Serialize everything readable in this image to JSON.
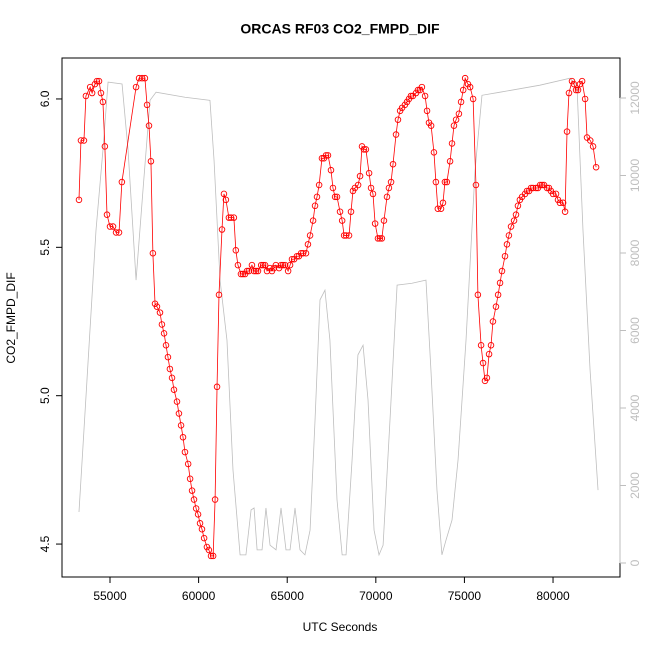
{
  "chart_data": {
    "type": "line",
    "title": "ORCAS RF03 CO2_FMPD_DIF",
    "x_label": "UTC Seconds",
    "y_label": "CO2_FMPD_DIF",
    "xlim": [
      52291,
      83779
    ],
    "ylim": [
      4.389,
      6.138
    ],
    "y2lim": [
      -361,
      13032
    ],
    "xticks": [
      55000,
      60000,
      65000,
      70000,
      75000,
      80000
    ],
    "yticks": [
      {
        "value": 4.5,
        "label": "4.5"
      },
      {
        "value": 5.0,
        "label": "5.0"
      },
      {
        "value": 5.5,
        "label": "5.5"
      },
      {
        "value": 6.0,
        "label": "6.0"
      }
    ],
    "y2ticks": [
      0,
      2000,
      4000,
      6000,
      8000,
      10000,
      12000
    ],
    "grid": false,
    "series": [
      {
        "color": "#ff0000",
        "markers": true,
        "x": [
          53250,
          53360,
          53530,
          53640,
          53880,
          53990,
          54150,
          54260,
          54380,
          54490,
          54600,
          54710,
          54830,
          55000,
          55170,
          55340,
          55510,
          55670,
          56470,
          56640,
          56810,
          56970,
          57090,
          57200,
          57310,
          57420,
          57540,
          57650,
          57820,
          57930,
          58050,
          58160,
          58270,
          58380,
          58500,
          58610,
          58780,
          58890,
          59010,
          59120,
          59230,
          59410,
          59520,
          59630,
          59740,
          59860,
          59970,
          60080,
          60190,
          60310,
          60470,
          60580,
          60700,
          60820,
          60930,
          61040,
          61150,
          61320,
          61430,
          61540,
          61710,
          61830,
          61990,
          62100,
          62220,
          62390,
          62500,
          62620,
          62730,
          62840,
          63010,
          63130,
          63240,
          63350,
          63530,
          63640,
          63750,
          63860,
          64030,
          64140,
          64250,
          64360,
          64540,
          64650,
          64760,
          64880,
          65050,
          65160,
          65270,
          65390,
          65550,
          65660,
          65780,
          65890,
          66060,
          66170,
          66290,
          66460,
          66570,
          66680,
          66800,
          66960,
          67070,
          67190,
          67300,
          67470,
          67580,
          67700,
          67810,
          67980,
          68100,
          68210,
          68320,
          68490,
          68600,
          68710,
          68820,
          69000,
          69110,
          69220,
          69330,
          69440,
          69620,
          69730,
          69840,
          69960,
          70120,
          70230,
          70340,
          70460,
          70630,
          70740,
          70860,
          70970,
          71140,
          71250,
          71370,
          71480,
          71640,
          71760,
          71870,
          71980,
          72090,
          72270,
          72380,
          72490,
          72600,
          72780,
          72890,
          73000,
          73120,
          73280,
          73390,
          73500,
          73680,
          73790,
          73900,
          74010,
          74190,
          74300,
          74410,
          74530,
          74690,
          74810,
          74930,
          75040,
          75200,
          75320,
          75490,
          75650,
          75760,
          75940,
          76050,
          76160,
          76270,
          76390,
          76500,
          76610,
          76780,
          76900,
          77010,
          77120,
          77290,
          77400,
          77510,
          77630,
          77800,
          77910,
          78020,
          78130,
          78250,
          78420,
          78530,
          78650,
          78760,
          78870,
          79040,
          79150,
          79270,
          79380,
          79490,
          79660,
          79770,
          79880,
          80000,
          80170,
          80280,
          80390,
          80570,
          80680,
          80790,
          80900,
          81070,
          81180,
          81300,
          81410,
          81520,
          81640,
          81810,
          81920,
          82100,
          82260,
          82430
        ],
        "values": [
          5.66,
          5.86,
          5.86,
          6.01,
          6.04,
          6.02,
          6.05,
          6.06,
          6.06,
          6.02,
          5.99,
          5.84,
          5.61,
          5.57,
          5.57,
          5.55,
          5.55,
          5.72,
          6.04,
          6.07,
          6.07,
          6.07,
          5.98,
          5.91,
          5.79,
          5.48,
          5.31,
          5.3,
          5.28,
          5.24,
          5.21,
          5.17,
          5.13,
          5.09,
          5.06,
          5.02,
          4.98,
          4.94,
          4.9,
          4.86,
          4.81,
          4.77,
          4.72,
          4.68,
          4.65,
          4.62,
          4.6,
          4.57,
          4.55,
          4.52,
          4.49,
          4.48,
          4.46,
          4.46,
          4.65,
          5.03,
          5.34,
          5.56,
          5.68,
          5.66,
          5.6,
          5.6,
          5.6,
          5.49,
          5.44,
          5.41,
          5.41,
          5.41,
          5.42,
          5.42,
          5.44,
          5.42,
          5.42,
          5.42,
          5.44,
          5.44,
          5.44,
          5.42,
          5.43,
          5.42,
          5.43,
          5.44,
          5.43,
          5.44,
          5.44,
          5.44,
          5.42,
          5.44,
          5.46,
          5.46,
          5.47,
          5.47,
          5.48,
          5.48,
          5.48,
          5.51,
          5.54,
          5.59,
          5.64,
          5.67,
          5.71,
          5.8,
          5.8,
          5.81,
          5.81,
          5.76,
          5.7,
          5.67,
          5.67,
          5.62,
          5.59,
          5.54,
          5.54,
          5.54,
          5.62,
          5.69,
          5.7,
          5.71,
          5.74,
          5.84,
          5.83,
          5.83,
          5.75,
          5.7,
          5.68,
          5.58,
          5.53,
          5.53,
          5.53,
          5.59,
          5.67,
          5.7,
          5.72,
          5.78,
          5.88,
          5.93,
          5.96,
          5.97,
          5.98,
          5.99,
          6.0,
          6.01,
          6.01,
          6.02,
          6.03,
          6.03,
          6.04,
          6.01,
          5.96,
          5.92,
          5.91,
          5.82,
          5.72,
          5.63,
          5.63,
          5.65,
          5.72,
          5.72,
          5.79,
          5.85,
          5.91,
          5.93,
          5.95,
          5.99,
          6.03,
          6.07,
          6.05,
          6.04,
          6.0,
          5.71,
          5.34,
          5.17,
          5.11,
          5.05,
          5.06,
          5.14,
          5.17,
          5.25,
          5.3,
          5.34,
          5.38,
          5.42,
          5.47,
          5.51,
          5.54,
          5.57,
          5.59,
          5.61,
          5.64,
          5.66,
          5.67,
          5.68,
          5.69,
          5.69,
          5.7,
          5.7,
          5.7,
          5.7,
          5.71,
          5.71,
          5.71,
          5.7,
          5.7,
          5.69,
          5.68,
          5.68,
          5.66,
          5.65,
          5.65,
          5.62,
          5.89,
          6.02,
          6.06,
          6.05,
          6.03,
          6.03,
          6.05,
          6.06,
          6.0,
          5.87,
          5.86,
          5.84,
          5.77
        ]
      },
      {
        "color": "#bebebe",
        "axis": "y2",
        "markers": false,
        "x": [
          53250,
          53530,
          53870,
          54210,
          54600,
          54890,
          55680,
          56020,
          56470,
          56860,
          57260,
          57600,
          59230,
          60640,
          60870,
          61210,
          61600,
          61940,
          62340,
          62670,
          62960,
          63130,
          63300,
          63580,
          63800,
          64030,
          64370,
          64650,
          64930,
          65160,
          65440,
          65720,
          66000,
          66290,
          66570,
          66850,
          67130,
          67410,
          67810,
          68100,
          68320,
          68660,
          68990,
          69280,
          69560,
          69900,
          70180,
          70410,
          70800,
          71200,
          72040,
          72830,
          73110,
          73450,
          73730,
          73960,
          74300,
          74640,
          75090,
          75600,
          75990,
          77010,
          79260,
          80960,
          81350,
          81690,
          82090,
          82540
        ],
        "values": [
          1316,
          3430,
          6010,
          8590,
          10650,
          12410,
          12360,
          10650,
          7300,
          9620,
          11940,
          12150,
          12020,
          11940,
          10400,
          7300,
          5750,
          2400,
          210,
          210,
          1370,
          1420,
          340,
          340,
          1420,
          460,
          340,
          1420,
          340,
          340,
          1420,
          340,
          210,
          850,
          3690,
          6790,
          7040,
          5750,
          1630,
          210,
          210,
          2660,
          5370,
          5620,
          4210,
          850,
          210,
          460,
          3690,
          7170,
          7220,
          7300,
          4980,
          1880,
          210,
          590,
          1110,
          2660,
          5750,
          10140,
          12070,
          12150,
          12330,
          12510,
          12330,
          8590,
          4980,
          1880
        ]
      }
    ]
  }
}
